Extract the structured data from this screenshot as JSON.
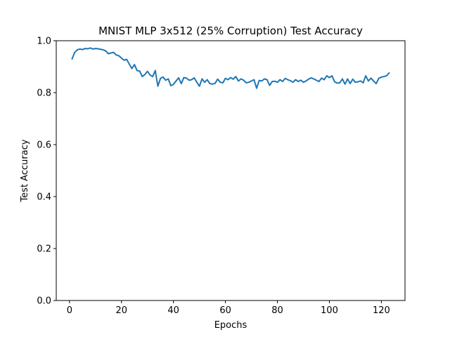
{
  "chart_data": {
    "type": "line",
    "title": "MNIST MLP 3x512 (25% Corruption) Test Accuracy",
    "xlabel": "Epochs",
    "ylabel": "Test Accuracy",
    "xlim": [
      -5.1,
      129.1
    ],
    "ylim": [
      0.0,
      1.0
    ],
    "xticks": [
      0,
      20,
      40,
      60,
      80,
      100,
      120
    ],
    "xtick_labels": [
      "0",
      "20",
      "40",
      "60",
      "80",
      "100",
      "120"
    ],
    "yticks": [
      0.0,
      0.2,
      0.4,
      0.6,
      0.8,
      1.0
    ],
    "ytick_labels": [
      "0.0",
      "0.2",
      "0.4",
      "0.6",
      "0.8",
      "1.0"
    ],
    "grid": false,
    "series": [
      {
        "name": "Test Accuracy",
        "color": "#1f77b4",
        "x_start": 1,
        "x_step": 1,
        "values": [
          0.93,
          0.955,
          0.965,
          0.968,
          0.966,
          0.97,
          0.969,
          0.972,
          0.968,
          0.97,
          0.969,
          0.967,
          0.965,
          0.96,
          0.95,
          0.953,
          0.955,
          0.945,
          0.942,
          0.933,
          0.925,
          0.928,
          0.91,
          0.893,
          0.908,
          0.885,
          0.883,
          0.862,
          0.87,
          0.882,
          0.868,
          0.862,
          0.885,
          0.825,
          0.855,
          0.86,
          0.848,
          0.853,
          0.827,
          0.832,
          0.845,
          0.857,
          0.835,
          0.858,
          0.856,
          0.848,
          0.85,
          0.857,
          0.84,
          0.825,
          0.853,
          0.84,
          0.85,
          0.835,
          0.833,
          0.836,
          0.852,
          0.84,
          0.838,
          0.855,
          0.85,
          0.858,
          0.852,
          0.862,
          0.845,
          0.853,
          0.848,
          0.838,
          0.84,
          0.845,
          0.85,
          0.817,
          0.847,
          0.845,
          0.853,
          0.85,
          0.828,
          0.843,
          0.844,
          0.84,
          0.85,
          0.843,
          0.855,
          0.85,
          0.846,
          0.84,
          0.85,
          0.843,
          0.848,
          0.84,
          0.845,
          0.852,
          0.857,
          0.853,
          0.848,
          0.843,
          0.856,
          0.85,
          0.865,
          0.858,
          0.865,
          0.842,
          0.837,
          0.838,
          0.853,
          0.833,
          0.853,
          0.835,
          0.852,
          0.84,
          0.842,
          0.845,
          0.838,
          0.865,
          0.845,
          0.856,
          0.845,
          0.835,
          0.855,
          0.86,
          0.862,
          0.865,
          0.876
        ]
      }
    ]
  }
}
